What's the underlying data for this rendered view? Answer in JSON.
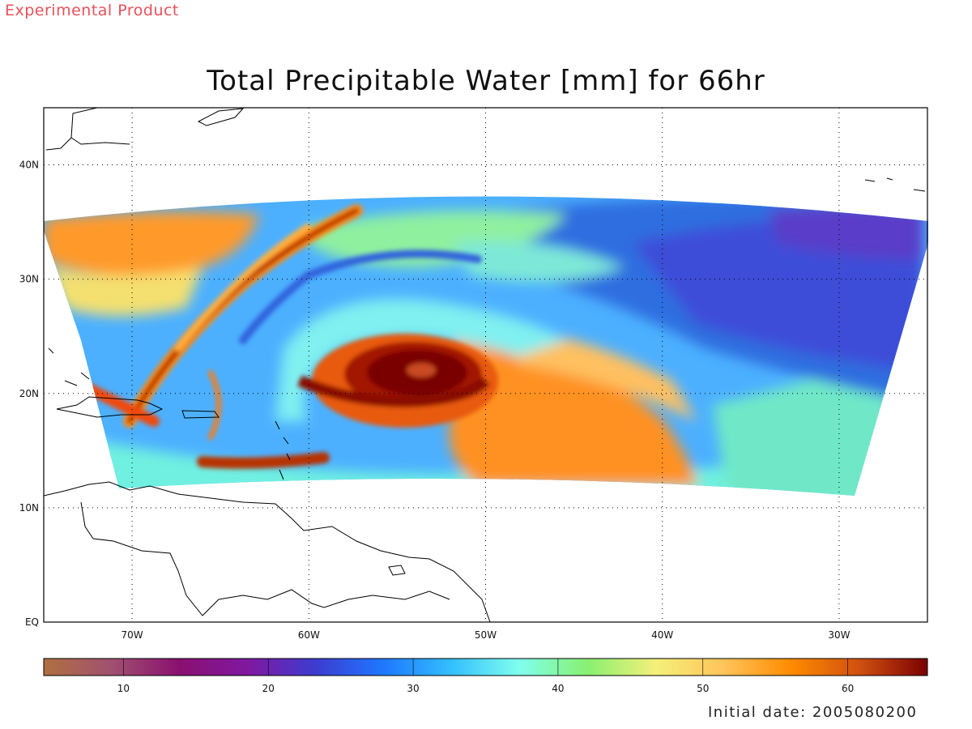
{
  "header": {
    "product_label": "Experimental Product",
    "title": "Total Precipitable Water [mm] for 66hr"
  },
  "footer": {
    "initial_date": "Initial date: 2005080200"
  },
  "map": {
    "lon_range": [
      -75,
      -25
    ],
    "lat_range": [
      0,
      45
    ],
    "lon_labels": [
      "70W",
      "60W",
      "50W",
      "40W",
      "30W"
    ],
    "lat_labels": [
      "EQ",
      "10N",
      "20N",
      "30N",
      "40N"
    ],
    "grid": "dotted",
    "field_extent": {
      "south": 11,
      "north": 36,
      "west": -75,
      "east": -25
    },
    "storm_center": {
      "lon": -53.5,
      "lat": 21.2
    }
  },
  "colorbar": {
    "min": 4.5,
    "max": 65.5,
    "tick_values": [
      "10",
      "20",
      "30",
      "40",
      "50",
      "60"
    ],
    "palette": [
      "#b07040",
      "#a05070",
      "#8a1070",
      "#8018a0",
      "#3c3cd0",
      "#1e78ff",
      "#34bfff",
      "#80ffee",
      "#88f070",
      "#f4f07a",
      "#ffc45a",
      "#ff8a00",
      "#d05010",
      "#7a0000"
    ]
  },
  "colors": {
    "product_label": "#e8505a",
    "frame": "#000000",
    "background": "#ffffff"
  }
}
